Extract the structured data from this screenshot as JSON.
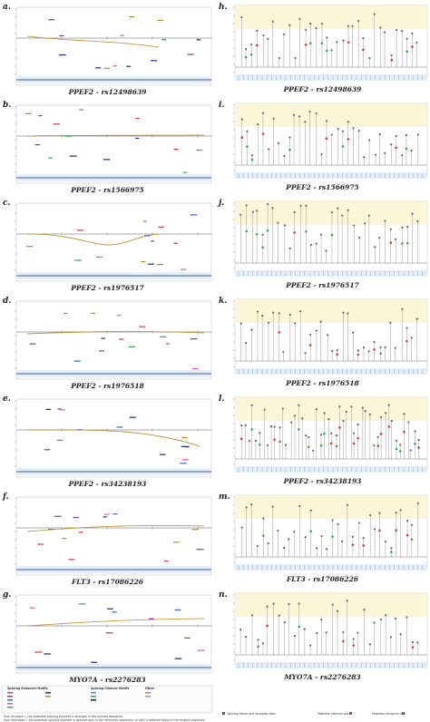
{
  "left_panels": [
    {
      "label": "a.",
      "caption": "PPEF2 - rs12498639"
    },
    {
      "label": "b.",
      "caption": "PPEF2 - rs1566975"
    },
    {
      "label": "c.",
      "caption": "PPEF2 - rs1976517"
    },
    {
      "label": "d.",
      "caption": "PPEF2 - rs1976518"
    },
    {
      "label": "e.",
      "caption": "PPEF2 - rs34238193"
    },
    {
      "label": "f.",
      "caption": "FLT3 - rs17086226"
    },
    {
      "label": "g.",
      "caption": "MYO7A - rs2276283"
    }
  ],
  "right_panels": [
    {
      "label": "h.",
      "caption": "PPEF2 - rs12498639"
    },
    {
      "label": "i.",
      "caption": "PPEF2 - rs1566975"
    },
    {
      "label": "j.",
      "caption": "PPEF2 - rs1976517"
    },
    {
      "label": "k.",
      "caption": "PPEF2 - rs1976518"
    },
    {
      "label": "l.",
      "caption": "PPEF2 - rs34238193"
    },
    {
      "label": "m.",
      "caption": "FLT3 - rs17086226"
    },
    {
      "label": "n.",
      "caption": "MYO7A - rs2276283"
    }
  ],
  "legend": {
    "enhancer_title": "Splicing Enhancer Motifs",
    "silencer_title": "Splicing Silencer Motifs",
    "other_title": "Other",
    "footer_lines": [
      "Sum Increase = the potential splicing element is stronger in the mutant sequence",
      "Sum Decrease = the potential splicing element is present only in the reference sequence, or with a reduced value in the mutant sequence"
    ],
    "right_items": [
      "Splicing Donor and Acceptor sites",
      "Potential silencer site",
      "Potential enhancer site"
    ]
  },
  "colors": {
    "bg_yellow": "#fbf6d8",
    "bg_blue": "#e3eef8",
    "curve": "#b08d2a",
    "green": "#3aa655",
    "red": "#d43b3b",
    "grid": "#cfcfcf"
  }
}
